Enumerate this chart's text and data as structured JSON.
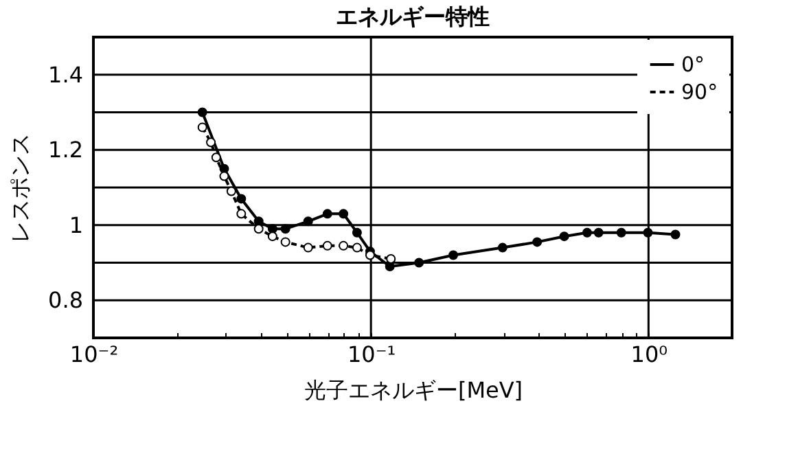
{
  "chart_data": {
    "type": "line",
    "title": "エネルギー特性",
    "xlabel": "光子エネルギー[MeV]",
    "ylabel": "レスポンス",
    "log": "x",
    "xlim": [
      0.01,
      2
    ],
    "ylim": [
      0.7,
      1.5
    ],
    "xticks": [
      {
        "value": 0.01,
        "label": "10⁻²"
      },
      {
        "value": 0.02,
        "label": null
      },
      {
        "value": 0.03,
        "label": null
      },
      {
        "value": 0.04,
        "label": null
      },
      {
        "value": 0.05,
        "label": null
      },
      {
        "value": 0.06,
        "label": null
      },
      {
        "value": 0.07,
        "label": null
      },
      {
        "value": 0.08,
        "label": null
      },
      {
        "value": 0.09,
        "label": null
      },
      {
        "value": 0.1,
        "label": "10⁻¹"
      },
      {
        "value": 0.2,
        "label": null
      },
      {
        "value": 0.3,
        "label": null
      },
      {
        "value": 0.4,
        "label": null
      },
      {
        "value": 0.5,
        "label": null
      },
      {
        "value": 0.6,
        "label": null
      },
      {
        "value": 0.7,
        "label": null
      },
      {
        "value": 0.8,
        "label": null
      },
      {
        "value": 0.9,
        "label": null
      },
      {
        "value": 1,
        "label": "10⁰"
      },
      {
        "value": 2,
        "label": null
      }
    ],
    "yticks": [
      0.8,
      {
        "value": 0.9,
        "label": null
      },
      1,
      {
        "value": 1.1,
        "label": null
      },
      1.2,
      {
        "value": 1.3,
        "label": null
      },
      1.4
    ],
    "grid": "y",
    "legend": "top right",
    "marker": "circle",
    "ref_lines": [
      {
        "axis": "x",
        "value": 0.1
      },
      {
        "axis": "x",
        "value": 1
      }
    ],
    "series": [
      {
        "name": "0°",
        "color": "#000000",
        "line_style": "solid",
        "x": [
          0.0247,
          0.0296,
          0.0341,
          0.0394,
          0.0442,
          0.0492,
          0.0594,
          0.0697,
          0.0796,
          0.0891,
          0.0993,
          0.117,
          0.149,
          0.198,
          0.298,
          0.397,
          0.497,
          0.601,
          0.661,
          0.798,
          0.995,
          1.25
        ],
        "values": [
          1.3,
          1.15,
          1.07,
          1.01,
          0.99,
          0.99,
          1.01,
          1.03,
          1.03,
          0.98,
          0.93,
          0.89,
          0.9,
          0.92,
          0.94,
          0.955,
          0.97,
          0.98,
          0.98,
          0.98,
          0.98,
          0.975
        ]
      },
      {
        "name": "90°",
        "color": "#000000",
        "line_style": "dashed",
        "x": [
          0.0247,
          0.0265,
          0.0277,
          0.0296,
          0.0314,
          0.0341,
          0.0394,
          0.0442,
          0.0492,
          0.0594,
          0.0697,
          0.0796,
          0.0891,
          0.0993,
          0.118
        ],
        "values": [
          1.26,
          1.22,
          1.18,
          1.13,
          1.09,
          1.03,
          0.99,
          0.97,
          0.955,
          0.94,
          0.945,
          0.945,
          0.94,
          0.92,
          0.91
        ]
      }
    ]
  }
}
